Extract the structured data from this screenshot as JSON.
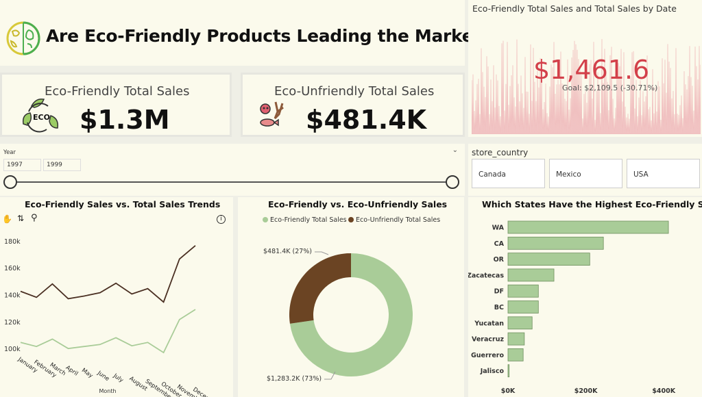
{
  "header": {
    "title": "Are Eco-Friendly Products Leading the Market?"
  },
  "kpis": {
    "eco": {
      "label": "Eco-Friendly Total Sales",
      "value": "$1.3M",
      "icon": "eco-recycle-icon",
      "icon_text": "ECO"
    },
    "unfriendly": {
      "label": "Eco-Unfriendly Total Sales",
      "value": "$481.4K",
      "icon": "pollution-icon"
    }
  },
  "trend_card": {
    "title": "Eco-Friendly Total Sales and Total Sales by Date",
    "value": "$1,461.6",
    "goal": "Goal: $2,109.5 (-30.71%)"
  },
  "year_slicer": {
    "label": "Year",
    "from": "1997",
    "to": "1999"
  },
  "country_slicer": {
    "label": "store_country",
    "options": [
      "Canada",
      "Mexico",
      "USA"
    ]
  },
  "colors": {
    "eco": "#a9cc98",
    "unfriendly": "#6b4423",
    "total_line": "#4a2f22",
    "goal_red": "#d3404a"
  },
  "chart_data": [
    {
      "type": "line",
      "title": "Eco-Friendly Sales vs. Total Sales Trends",
      "xlabel": "Month",
      "ylabel": "",
      "categories": [
        "January",
        "February",
        "March",
        "April",
        "May",
        "June",
        "July",
        "August",
        "September",
        "October",
        "November",
        "December"
      ],
      "ytick_labels": [
        "100k",
        "120k",
        "140k",
        "160k",
        "180k"
      ],
      "ylim": [
        96000,
        184000
      ],
      "series": [
        {
          "values": [
            143000,
            138500,
            148500,
            137500,
            139500,
            142000,
            149000,
            141000,
            145000,
            135000,
            167000,
            177000
          ]
        },
        {
          "values": [
            105000,
            102000,
            107500,
            100500,
            102000,
            103500,
            108500,
            102500,
            105000,
            97500,
            122000,
            129500
          ]
        }
      ]
    },
    {
      "type": "pie",
      "title": "Eco-Friendly vs. Eco-Unfriendly Sales",
      "series": [
        {
          "name": "Eco-Friendly Total Sales",
          "value": 1283.2,
          "label": "$1,283.2K (73%)"
        },
        {
          "name": "Eco-Unfriendly Total Sales",
          "value": 481.4,
          "label": "$481.4K (27%)"
        }
      ]
    },
    {
      "type": "bar",
      "title": "Which States Have the Highest Eco-Friendly Sales?",
      "categories": [
        "WA",
        "CA",
        "OR",
        "Zacatecas",
        "DF",
        "BC",
        "Yucatan",
        "Veracruz",
        "Guerrero",
        "Jalisco"
      ],
      "values": [
        412000,
        245000,
        210000,
        118000,
        78000,
        78000,
        62000,
        42000,
        39000,
        3000
      ],
      "xtick_labels": [
        "$0K",
        "$200K",
        "$400K"
      ],
      "xticks": [
        0,
        200000,
        400000
      ],
      "xlim": [
        0,
        470000
      ]
    }
  ]
}
